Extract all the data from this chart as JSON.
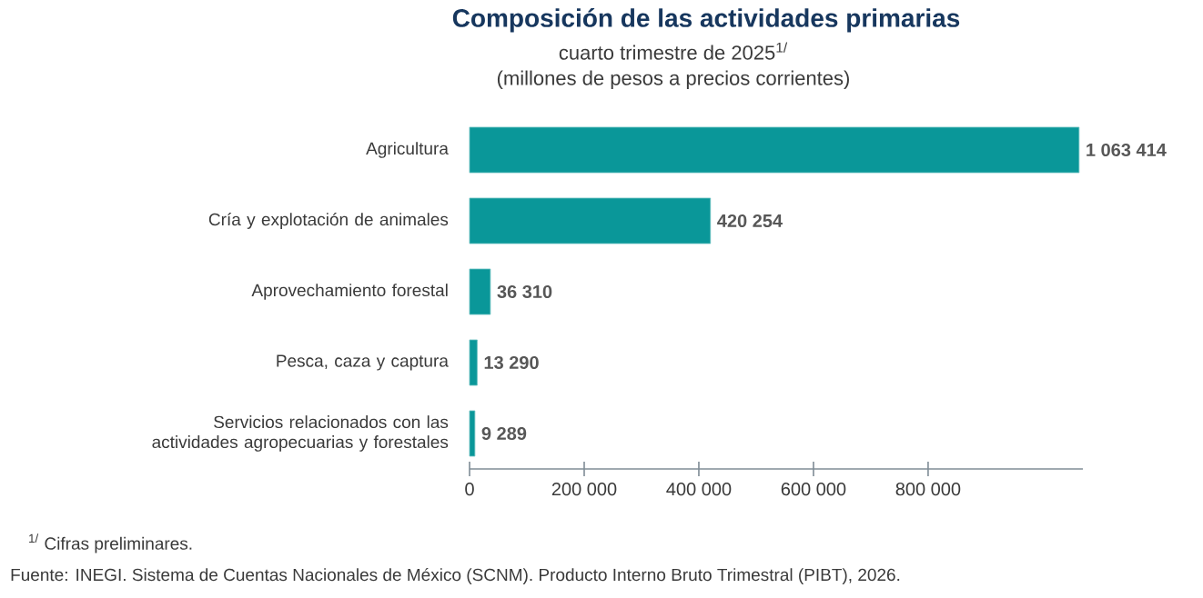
{
  "chart_data": {
    "type": "bar",
    "orientation": "horizontal",
    "title": "Composición de las actividades primarias",
    "subtitle": "cuarto trimestre de 2025$^{1/}$\n(millones de pesos a precios corrientes)",
    "categories": [
      "Agricultura",
      "Cría y explotación de animales",
      "Aprovechamiento forestal",
      "Pesca, caza y captura",
      "Servicios relacionados con las actividades agropecuarias y forestales"
    ],
    "values": [
      1063414,
      420254,
      36310,
      13290,
      9289
    ],
    "value_labels": [
      "1 063 414",
      "420 254",
      "36 310",
      "13 290",
      "9 289"
    ],
    "color": "#0a9799",
    "xlim": [
      0,
      1070000
    ],
    "xticks": [
      0,
      {
        "value": 200000,
        "label": "200 000"
      },
      {
        "value": 400000,
        "label": "400 000"
      },
      {
        "value": 600000,
        "label": "600 000"
      },
      {
        "value": 800000,
        "label": "800 000"
      }
    ],
    "annotations": [
      "$^{1/}$ Cifras preliminares.",
      "Fuente: INEGI. Sistema de Cuentas Nacionales de México (SCNM). Producto Interno Bruto Trimestral (PIBT), 2026."
    ]
  }
}
